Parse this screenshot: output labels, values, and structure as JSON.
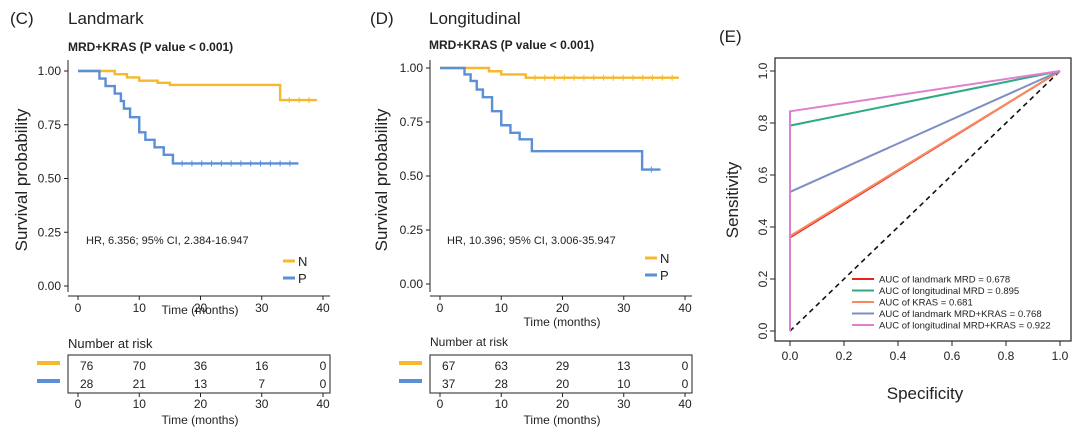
{
  "colors": {
    "N": "#f5b82e",
    "P": "#5b8fd6",
    "axis": "#222222"
  },
  "chart_data": [
    {
      "type": "line",
      "panel": "(C)",
      "title": "Landmark",
      "subtitle": "MRD+KRAS  (P value < 0.001)",
      "xlabel": "Time (months)",
      "ylabel": "Survival probability",
      "xlim": [
        0,
        40
      ],
      "ylim": [
        0,
        1
      ],
      "xticks": [
        "0",
        "10",
        "20",
        "30",
        "40"
      ],
      "yticks": [
        "0.00",
        "0.25",
        "0.50",
        "0.75",
        "1.00"
      ],
      "annotation": "HR, 6.356; 95% CI, 2.384-16.947",
      "legend": {
        "position": "bottom-right",
        "entries": [
          "N",
          "P"
        ]
      },
      "series": [
        {
          "name": "N",
          "color": "#f5b82e",
          "x": [
            0,
            4.5,
            6,
            8,
            10,
            13,
            15,
            33
          ],
          "y": [
            1.0,
            1.0,
            0.985,
            0.97,
            0.955,
            0.945,
            0.935,
            0.865
          ],
          "end": 39
        },
        {
          "name": "P",
          "color": "#5b8fd6",
          "x": [
            0,
            3.5,
            4.5,
            6,
            7,
            7.5,
            8.5,
            10,
            11,
            12.5,
            14,
            15.5
          ],
          "y": [
            1.0,
            0.965,
            0.93,
            0.895,
            0.86,
            0.825,
            0.785,
            0.715,
            0.68,
            0.645,
            0.61,
            0.57
          ],
          "end": 36
        }
      ],
      "risk_table": {
        "title": "Number at risk",
        "xlabel": "Time (months)",
        "rows": [
          {
            "group": "N",
            "values": [
              "76",
              "70",
              "36",
              "16",
              "0"
            ]
          },
          {
            "group": "P",
            "values": [
              "28",
              "21",
              "13",
              "7",
              "0"
            ]
          }
        ]
      }
    },
    {
      "type": "line",
      "panel": "(D)",
      "title": "Longitudinal",
      "subtitle": "MRD+KRAS  (P value < 0.001)",
      "xlabel": "Time (months)",
      "ylabel": "Survival probability",
      "xlim": [
        0,
        40
      ],
      "ylim": [
        0,
        1
      ],
      "xticks": [
        "0",
        "10",
        "20",
        "30",
        "40"
      ],
      "yticks": [
        "0.00",
        "0.25",
        "0.50",
        "0.75",
        "1.00"
      ],
      "annotation": "HR, 10.396; 95% CI, 3.006-35.947",
      "legend": {
        "position": "bottom-right",
        "entries": [
          "N",
          "P"
        ]
      },
      "series": [
        {
          "name": "N",
          "color": "#f5b82e",
          "x": [
            0,
            8,
            10,
            14
          ],
          "y": [
            1.0,
            0.985,
            0.97,
            0.955
          ],
          "end": 39
        },
        {
          "name": "P",
          "color": "#5b8fd6",
          "x": [
            0,
            4,
            5,
            6,
            7,
            8.5,
            10,
            11.5,
            13,
            15,
            33
          ],
          "y": [
            1.0,
            0.97,
            0.94,
            0.9,
            0.865,
            0.8,
            0.735,
            0.7,
            0.67,
            0.615,
            0.53
          ],
          "end": 36
        }
      ],
      "risk_table": {
        "title": "Number at risk",
        "xlabel": "Time (months)",
        "rows": [
          {
            "group": "N",
            "values": [
              "67",
              "63",
              "29",
              "13",
              "0"
            ]
          },
          {
            "group": "P",
            "values": [
              "37",
              "28",
              "20",
              "10",
              "0"
            ]
          }
        ]
      }
    },
    {
      "type": "line",
      "panel": "(E)",
      "xlabel": "Specificity",
      "ylabel": "Sensitivity",
      "xlim": [
        0,
        1
      ],
      "ylim": [
        0,
        1
      ],
      "xticks": [
        "0.0",
        "0.2",
        "0.4",
        "0.6",
        "0.8",
        "1.0"
      ],
      "yticks": [
        "0.0",
        "0.2",
        "0.4",
        "0.6",
        "0.8",
        "1.0"
      ],
      "legend": {
        "position": "bottom-right"
      },
      "series": [
        {
          "name": "AUC of landmark MRD = 0.678",
          "color": "#e8261f",
          "x": [
            0,
            0,
            1
          ],
          "y": [
            0,
            0.36,
            1
          ]
        },
        {
          "name": "AUC of longitudinal MRD = 0.895",
          "color": "#2eaa85",
          "x": [
            0,
            0,
            1
          ],
          "y": [
            0,
            0.79,
            1
          ]
        },
        {
          "name": "AUC of KRAS = 0.681",
          "color": "#f98a5e",
          "x": [
            0,
            0,
            1
          ],
          "y": [
            0,
            0.365,
            1
          ]
        },
        {
          "name": "AUC of landmark MRD+KRAS = 0.768",
          "color": "#7d8fc4",
          "x": [
            0,
            0,
            1
          ],
          "y": [
            0,
            0.535,
            1
          ]
        },
        {
          "name": "AUC of longitudinal MRD+KRAS = 0.922",
          "color": "#e07fd0",
          "x": [
            0,
            0,
            1
          ],
          "y": [
            0,
            0.845,
            1
          ]
        }
      ],
      "reference_line": {
        "x": [
          0,
          1
        ],
        "y": [
          0,
          1
        ]
      }
    }
  ]
}
